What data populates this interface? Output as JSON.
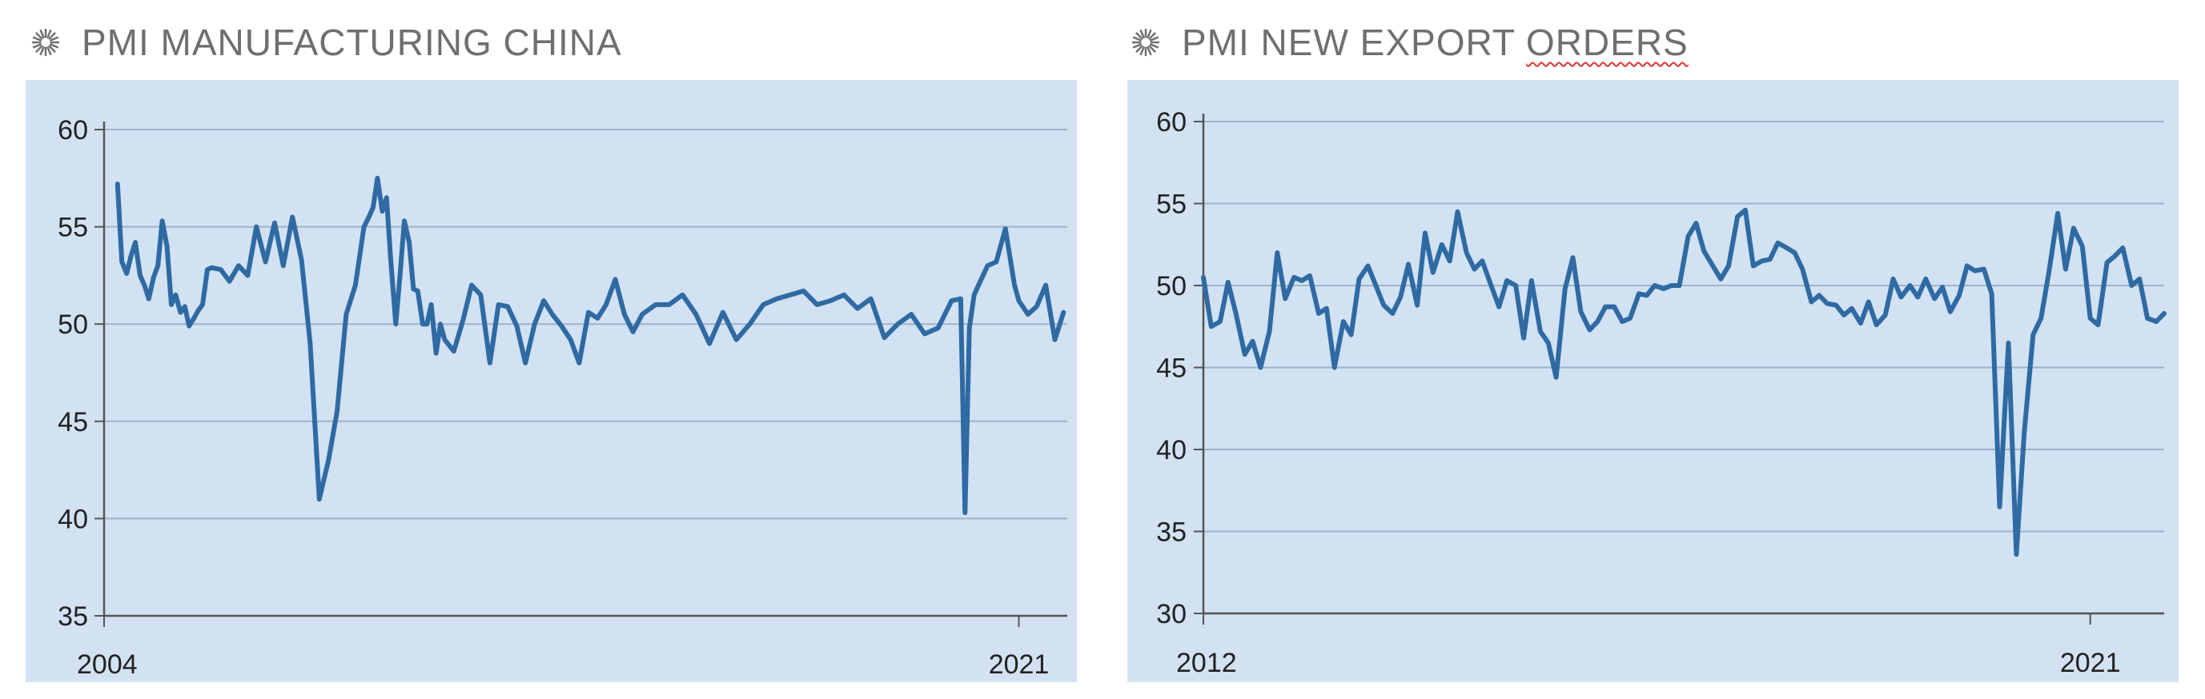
{
  "panels": [
    {
      "title_pre": "PMI MANUFACTURING CHINA",
      "title_flag": "",
      "icon": "sunburst-icon"
    },
    {
      "title_pre": "PMI NEW EXPORT ",
      "title_flag": "ORDERS",
      "icon": "sunburst-icon"
    }
  ],
  "colors": {
    "line": "#2f6aa3",
    "background": "#d2e2f2",
    "grid": "#9fb3c8",
    "axis": "#555555"
  },
  "chart_data": [
    {
      "type": "line",
      "title": "PMI MANUFACTURING CHINA",
      "xlabel": "",
      "ylabel": "",
      "ylim": [
        35,
        60
      ],
      "yticks": [
        35,
        40,
        45,
        50,
        55,
        60
      ],
      "x_tick_labels": [
        "2004",
        "2021"
      ],
      "x_range": [
        2004.0,
        2021.9
      ],
      "grid": "horizontal",
      "x": [
        2004.25,
        2004.33,
        2004.42,
        2004.5,
        2004.58,
        2004.67,
        2004.75,
        2004.83,
        2004.92,
        2005.0,
        2005.08,
        2005.17,
        2005.25,
        2005.33,
        2005.42,
        2005.5,
        2005.58,
        2005.67,
        2005.75,
        2005.83,
        2005.92,
        2006.0,
        2006.17,
        2006.33,
        2006.5,
        2006.67,
        2006.83,
        2007.0,
        2007.17,
        2007.33,
        2007.5,
        2007.67,
        2007.83,
        2008.0,
        2008.17,
        2008.33,
        2008.5,
        2008.67,
        2008.83,
        2008.92,
        2009.0,
        2009.08,
        2009.17,
        2009.25,
        2009.33,
        2009.42,
        2009.5,
        2009.58,
        2009.67,
        2009.75,
        2009.83,
        2009.92,
        2010.0,
        2010.08,
        2010.17,
        2010.25,
        2010.33,
        2010.5,
        2010.67,
        2010.83,
        2011.0,
        2011.17,
        2011.33,
        2011.5,
        2011.67,
        2011.83,
        2012.0,
        2012.17,
        2012.33,
        2012.5,
        2012.67,
        2012.83,
        2013.0,
        2013.17,
        2013.33,
        2013.5,
        2013.67,
        2013.83,
        2014.0,
        2014.25,
        2014.5,
        2014.75,
        2015.0,
        2015.25,
        2015.5,
        2015.75,
        2016.0,
        2016.25,
        2016.5,
        2016.75,
        2017.0,
        2017.25,
        2017.5,
        2017.75,
        2018.0,
        2018.25,
        2018.5,
        2018.75,
        2019.0,
        2019.25,
        2019.5,
        2019.75,
        2019.92,
        2020.0,
        2020.08,
        2020.17,
        2020.25,
        2020.42,
        2020.58,
        2020.75,
        2020.92,
        2021.0,
        2021.17,
        2021.33,
        2021.5,
        2021.67,
        2021.83
      ],
      "y": [
        57.2,
        53.2,
        52.6,
        53.5,
        54.2,
        52.5,
        52.0,
        51.3,
        52.4,
        53.0,
        55.3,
        54.0,
        51.0,
        51.5,
        50.6,
        50.9,
        49.9,
        50.3,
        50.7,
        51.0,
        52.8,
        52.9,
        52.8,
        52.2,
        53.0,
        52.5,
        55.0,
        53.2,
        55.2,
        53.0,
        55.5,
        53.3,
        49.0,
        41.0,
        43.0,
        45.5,
        50.5,
        52.0,
        55.0,
        55.5,
        56.0,
        57.5,
        55.8,
        56.5,
        53.2,
        50.0,
        52.5,
        55.3,
        54.2,
        51.8,
        51.7,
        50.0,
        50.0,
        51.0,
        48.5,
        50.0,
        49.2,
        48.6,
        50.2,
        52.0,
        51.5,
        48.0,
        51.0,
        50.9,
        49.9,
        48.0,
        50.0,
        51.2,
        50.5,
        49.9,
        49.2,
        48.0,
        50.6,
        50.3,
        51.0,
        52.3,
        50.5,
        49.6,
        50.5,
        51.0,
        51.0,
        51.5,
        50.5,
        49.0,
        50.6,
        49.2,
        50.0,
        51.0,
        51.3,
        51.5,
        51.7,
        51.0,
        51.2,
        51.5,
        50.8,
        51.3,
        49.3,
        50.0,
        50.5,
        49.5,
        49.8,
        51.2,
        51.3,
        40.3,
        49.8,
        51.5,
        52.0,
        53.0,
        53.2,
        54.9,
        52.0,
        51.2,
        50.5,
        50.9,
        52.0,
        49.2,
        50.6
      ]
    },
    {
      "type": "line",
      "title": "PMI NEW EXPORT ORDERS",
      "xlabel": "",
      "ylabel": "",
      "ylim": [
        30,
        60
      ],
      "yticks": [
        30,
        35,
        40,
        45,
        50,
        55,
        60
      ],
      "x_tick_labels": [
        "2012",
        "2021"
      ],
      "x_range": [
        2012.0,
        2021.75
      ],
      "grid": "horizontal",
      "x": [
        2012.0,
        2012.08,
        2012.17,
        2012.25,
        2012.33,
        2012.42,
        2012.5,
        2012.58,
        2012.67,
        2012.75,
        2012.83,
        2012.92,
        2013.0,
        2013.08,
        2013.17,
        2013.25,
        2013.33,
        2013.42,
        2013.5,
        2013.58,
        2013.67,
        2013.75,
        2013.83,
        2013.92,
        2014.0,
        2014.08,
        2014.17,
        2014.25,
        2014.33,
        2014.42,
        2014.5,
        2014.58,
        2014.67,
        2014.75,
        2014.83,
        2014.92,
        2015.0,
        2015.08,
        2015.17,
        2015.25,
        2015.33,
        2015.42,
        2015.5,
        2015.58,
        2015.67,
        2015.75,
        2015.83,
        2015.92,
        2016.0,
        2016.08,
        2016.17,
        2016.25,
        2016.33,
        2016.42,
        2016.5,
        2016.58,
        2016.67,
        2016.75,
        2016.83,
        2016.92,
        2017.0,
        2017.08,
        2017.17,
        2017.25,
        2017.33,
        2017.42,
        2017.5,
        2017.58,
        2017.67,
        2017.75,
        2017.83,
        2017.92,
        2018.0,
        2018.08,
        2018.17,
        2018.25,
        2018.33,
        2018.42,
        2018.5,
        2018.58,
        2018.67,
        2018.75,
        2018.83,
        2018.92,
        2019.0,
        2019.08,
        2019.17,
        2019.25,
        2019.33,
        2019.42,
        2019.5,
        2019.58,
        2019.67,
        2019.75,
        2019.83,
        2019.92,
        2020.0,
        2020.08,
        2020.17,
        2020.25,
        2020.33,
        2020.42,
        2020.5,
        2020.58,
        2020.67,
        2020.75,
        2020.83,
        2020.92,
        2021.0,
        2021.08,
        2021.17,
        2021.25,
        2021.33,
        2021.42,
        2021.5,
        2021.58,
        2021.67,
        2021.75
      ],
      "y": [
        50.5,
        47.5,
        47.8,
        50.2,
        48.3,
        45.8,
        46.6,
        45.0,
        47.2,
        52.0,
        49.2,
        50.5,
        50.3,
        50.6,
        48.3,
        48.6,
        45.0,
        47.8,
        47.0,
        50.4,
        51.2,
        50.0,
        48.8,
        48.3,
        49.3,
        51.3,
        48.8,
        53.2,
        50.8,
        52.5,
        51.5,
        54.5,
        52.0,
        51.0,
        51.5,
        50.0,
        48.7,
        50.3,
        50.0,
        46.8,
        50.3,
        47.2,
        46.5,
        44.4,
        49.8,
        51.7,
        48.4,
        47.3,
        47.8,
        48.7,
        48.7,
        47.8,
        48.0,
        49.5,
        49.4,
        50.0,
        49.8,
        50.0,
        50.0,
        53.0,
        53.8,
        52.1,
        51.2,
        50.4,
        51.2,
        54.2,
        54.6,
        51.2,
        51.5,
        51.6,
        52.6,
        52.3,
        52.0,
        51.0,
        49.0,
        49.4,
        48.9,
        48.8,
        48.2,
        48.6,
        47.7,
        49.0,
        47.6,
        48.2,
        50.4,
        49.3,
        50.0,
        49.3,
        50.4,
        49.2,
        49.9,
        48.4,
        49.4,
        51.2,
        50.9,
        51.0,
        49.5,
        36.5,
        46.5,
        33.6,
        41.0,
        47.0,
        48.0,
        50.8,
        54.4,
        51.0,
        53.5,
        52.4,
        48.0,
        47.6,
        51.4,
        51.8,
        52.3,
        50.0,
        50.4,
        48.0,
        47.8,
        48.3
      ]
    }
  ]
}
